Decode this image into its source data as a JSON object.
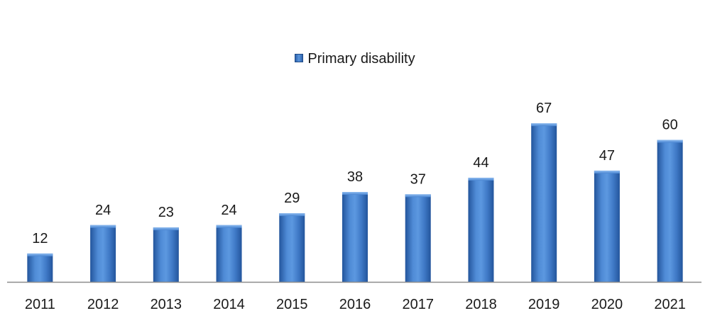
{
  "chart_data": {
    "type": "bar",
    "title": "",
    "xlabel": "",
    "ylabel": "",
    "categories": [
      "2011",
      "2012",
      "2013",
      "2014",
      "2015",
      "2016",
      "2017",
      "2018",
      "2019",
      "2020",
      "2021"
    ],
    "series": [
      {
        "name": "Primary disability",
        "values": [
          12,
          24,
          23,
          24,
          29,
          38,
          37,
          44,
          67,
          47,
          60
        ],
        "color": "#3a78c8"
      }
    ],
    "ylim": [
      0,
      80
    ],
    "grid": false,
    "legend_position": "top-center",
    "data_labels": true,
    "axis_line_color": "#8c8c8c"
  }
}
